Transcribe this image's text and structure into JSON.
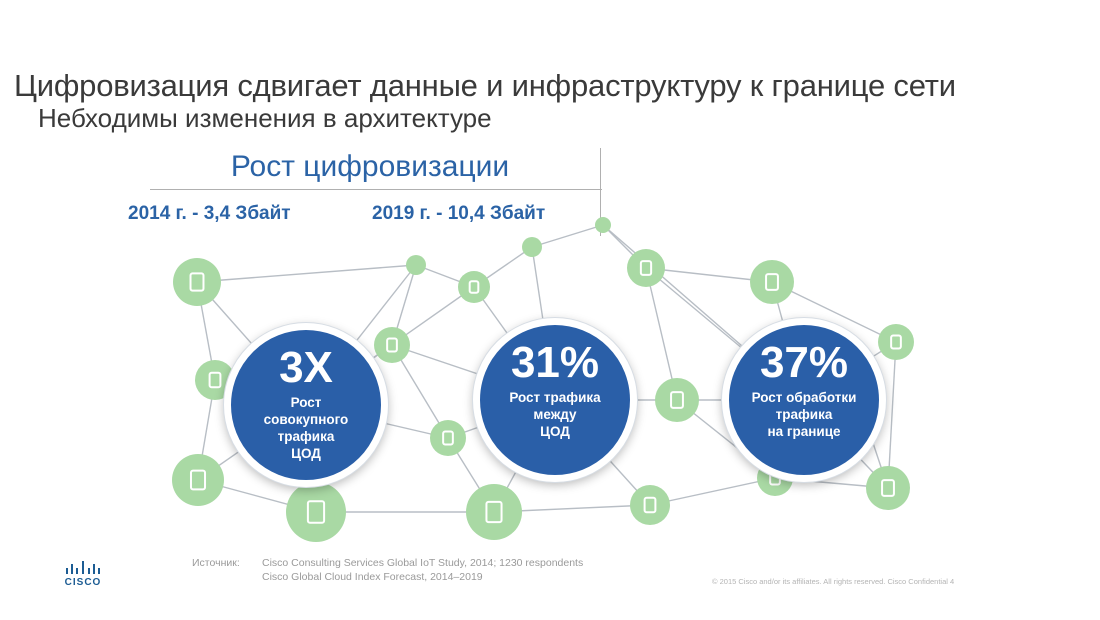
{
  "title": "Цифровизация сдвигает данные и инфраструктуру к границе сети",
  "subtitle": "Небходимы изменения в архитектуре",
  "growth": {
    "title": "Рост цифровизации",
    "stat_2014": "2014 г. - 3,4 Збайт",
    "stat_2019": "2019 г. - 10,4 Збайт"
  },
  "circles": [
    {
      "big": "3X",
      "text": "Рост\nсовокупного\nтрафика\nЦОД"
    },
    {
      "big": "31%",
      "text": "Рост трафика\nмежду\nЦОД"
    },
    {
      "big": "37%",
      "text": "Рост обработки\nтрафика\nна границе"
    }
  ],
  "network": {
    "node_color": "#a9d9a4",
    "line_color": "#b8bec5",
    "icons": [
      "mobile-phone-icon",
      "tablet-icon",
      "headset-icon",
      "video-camera-icon",
      "factory-icon",
      "monitor-icon",
      "hand-icon",
      "phone-icon",
      "sensor-icon",
      "building-icon",
      "video-screen-icon",
      "team-icon",
      "mine-cart-icon",
      "water-drop-icon",
      "airplane-icon",
      "people-icon",
      "lightbulb-icon",
      "security-camera-icon",
      "gear-icon"
    ]
  },
  "source": {
    "label": "Источник:",
    "lines": [
      "Cisco Consulting Services Global IoT Study, 2014; 1230 respondents",
      "Cisco Global Cloud Index Forecast, 2014–2019"
    ]
  },
  "copyright": "© 2015 Cisco and/or its affiliates. All rights reserved.   Cisco Confidential            4",
  "logo": {
    "text": "CISCO",
    "color": "#1c5c93"
  },
  "colors": {
    "accent": "#2b63a6",
    "circle": "#2a5fa8",
    "node": "#a9d9a4"
  }
}
